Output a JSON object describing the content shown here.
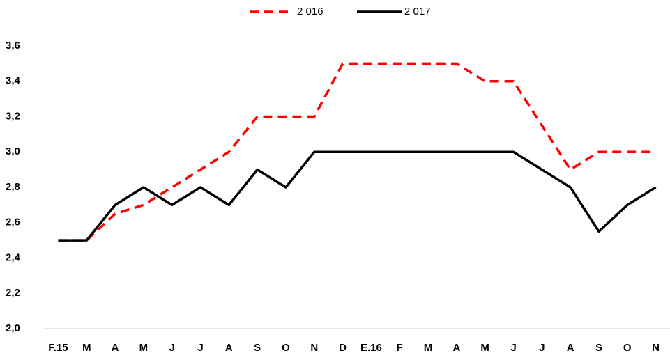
{
  "chart_data": {
    "type": "line",
    "categories": [
      "F.15",
      "M",
      "A",
      "M",
      "J",
      "J",
      "A",
      "S",
      "O",
      "N",
      "D",
      "E.16",
      "F",
      "M",
      "A",
      "M",
      "J",
      "J",
      "A",
      "S",
      "O",
      "N"
    ],
    "series": [
      {
        "name": "2 016",
        "color": "#ff0000",
        "dashed": true,
        "values": [
          2.5,
          2.5,
          2.65,
          2.7,
          2.8,
          2.9,
          3.0,
          3.2,
          3.2,
          3.2,
          3.5,
          3.5,
          3.5,
          3.5,
          3.5,
          3.4,
          3.4,
          3.15,
          2.9,
          3.0,
          3.0,
          3.0
        ]
      },
      {
        "name": "2 017",
        "color": "#000000",
        "dashed": false,
        "values": [
          2.5,
          2.5,
          2.7,
          2.8,
          2.7,
          2.8,
          2.7,
          2.9,
          2.8,
          3.0,
          3.0,
          3.0,
          3.0,
          3.0,
          3.0,
          3.0,
          3.0,
          2.9,
          2.8,
          2.55,
          2.7,
          2.8
        ]
      }
    ],
    "ylim": [
      2,
      3.6
    ],
    "yticks": [
      {
        "value": 2,
        "label": "2,0"
      },
      {
        "value": 2.2,
        "label": "2,2"
      },
      {
        "value": 2.4,
        "label": "2,4"
      },
      {
        "value": 2.6,
        "label": "2,6"
      },
      {
        "value": 2.8,
        "label": "2,8"
      },
      {
        "value": 3,
        "label": "3,0"
      },
      {
        "value": 3.2,
        "label": "3,2"
      },
      {
        "value": 3.4,
        "label": "3,4"
      },
      {
        "value": 3.6,
        "label": "3,6"
      }
    ],
    "grid": false,
    "legend": "top"
  }
}
